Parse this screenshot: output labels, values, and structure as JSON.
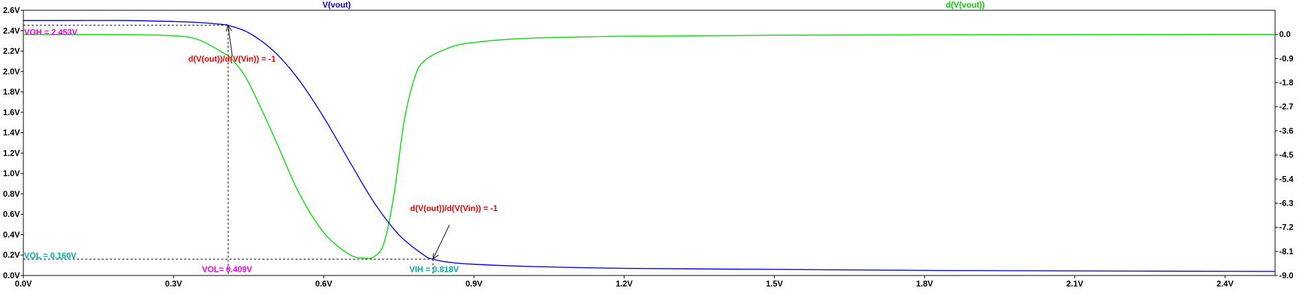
{
  "chart_data": {
    "type": "line",
    "title_left": "V(vout)",
    "title_right": "d(V(vout))",
    "x_ticks": [
      "0.0V",
      "0.3V",
      "0.6V",
      "0.9V",
      "1.2V",
      "1.5V",
      "1.8V",
      "2.1V",
      "2.4V"
    ],
    "x_tick_values": [
      0,
      0.3,
      0.6,
      0.9,
      1.2,
      1.5,
      1.8,
      2.1,
      2.4
    ],
    "xlim": [
      0,
      2.5
    ],
    "y_left_ticks": [
      "0.0V",
      "0.2V",
      "0.4V",
      "0.6V",
      "0.8V",
      "1.0V",
      "1.2V",
      "1.4V",
      "1.6V",
      "1.8V",
      "2.0V",
      "2.2V",
      "2.4V",
      "2.6V"
    ],
    "y_left_tick_values": [
      0,
      0.2,
      0.4,
      0.6,
      0.8,
      1.0,
      1.2,
      1.4,
      1.6,
      1.8,
      2.0,
      2.2,
      2.4,
      2.6
    ],
    "ylim_left": [
      0,
      2.6
    ],
    "y_right_ticks": [
      "0.0",
      "-0.9",
      "-1.8",
      "-2.7",
      "-3.6",
      "-4.5",
      "-5.4",
      "-6.3",
      "-7.2",
      "-8.1",
      "-9.0"
    ],
    "y_right_tick_values": [
      0,
      -0.9,
      -1.8,
      -2.7,
      -3.6,
      -4.5,
      -5.4,
      -6.3,
      -7.2,
      -8.1,
      -9.0
    ],
    "ylim_right": [
      -9.0,
      0.9
    ],
    "grid": false,
    "colors": {
      "vout": "#0000ee",
      "deriv": "#00dd00",
      "marker": "#000000"
    },
    "series": [
      {
        "name": "V(vout)",
        "axis": "left",
        "x": [
          0,
          0.1,
          0.2,
          0.3,
          0.35,
          0.4,
          0.409,
          0.45,
          0.5,
          0.55,
          0.6,
          0.65,
          0.7,
          0.75,
          0.8,
          0.818,
          0.85,
          0.9,
          1.0,
          1.2,
          1.5,
          1.8,
          2.1,
          2.5
        ],
        "values": [
          2.5,
          2.5,
          2.5,
          2.49,
          2.48,
          2.46,
          2.453,
          2.38,
          2.2,
          1.92,
          1.55,
          1.13,
          0.72,
          0.4,
          0.2,
          0.16,
          0.13,
          0.11,
          0.09,
          0.07,
          0.06,
          0.05,
          0.045,
          0.04
        ]
      },
      {
        "name": "d(V(vout))",
        "axis": "right",
        "x": [
          0,
          0.2,
          0.3,
          0.35,
          0.4,
          0.42,
          0.45,
          0.5,
          0.55,
          0.6,
          0.65,
          0.68,
          0.7,
          0.72,
          0.74,
          0.76,
          0.78,
          0.8,
          0.85,
          0.9,
          1.0,
          1.2,
          1.5,
          2.0,
          2.5
        ],
        "values": [
          0,
          -0.01,
          -0.05,
          -0.2,
          -0.7,
          -1.0,
          -1.8,
          -3.8,
          -5.9,
          -7.4,
          -8.2,
          -8.35,
          -8.3,
          -7.8,
          -6.0,
          -3.3,
          -1.7,
          -1.0,
          -0.5,
          -0.3,
          -0.15,
          -0.07,
          -0.03,
          -0.01,
          0
        ]
      }
    ],
    "annotations": {
      "voh_label": "VOH = 2.453V",
      "vol_label": "VOL = 0.160V",
      "vil_label": "VOL= 0.409V",
      "vih_label": "VIH = 0.818V",
      "slope_label_1": "d(V(out))/d(V(Vin)) = -1",
      "slope_label_2": "d(V(out))/d(V(Vin)) = -1",
      "label_colors": {
        "voh": "#ee00ee",
        "vol": "#00aaaa",
        "vil": "#ee00ee",
        "vih": "#00aaaa",
        "slope": "#ee0000"
      },
      "points": [
        {
          "name": "voh-point",
          "x": 0.409,
          "y": 2.453
        },
        {
          "name": "vol-point",
          "x": 0.818,
          "y": 0.16
        }
      ]
    }
  }
}
